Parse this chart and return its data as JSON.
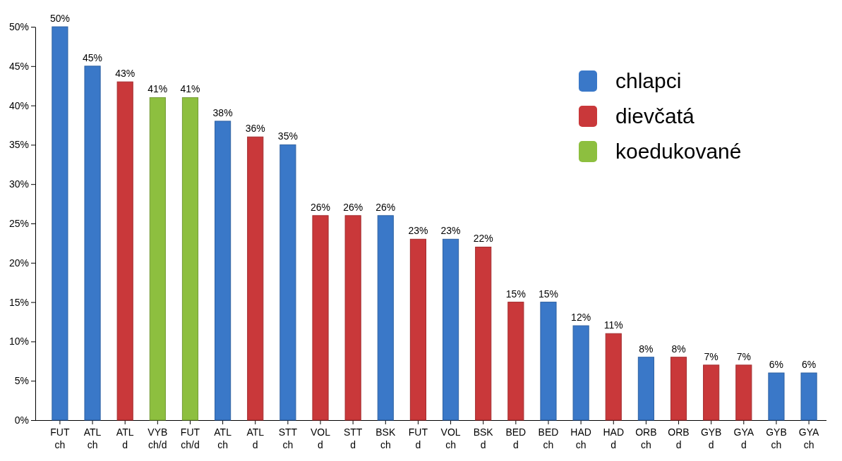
{
  "chart_data": {
    "type": "bar",
    "stacked": true,
    "legend": "top right",
    "categories": [
      "FUT ch",
      "ATL ch",
      "ATL d",
      "VYB ch/d",
      "FUT ch/d",
      "ATL ch",
      "ATL d",
      "STT ch",
      "VOL d",
      "STT d",
      "BSK ch",
      "FUT d",
      "VOL ch",
      "BSK d",
      "BED d",
      "BED ch",
      "HAD ch",
      "HAD d",
      "ORB ch",
      "ORB d",
      "GYB d",
      "GYA d",
      "GYB ch",
      "GYA ch"
    ],
    "series": [
      {
        "name": "chlapci",
        "color": "#3a78c8",
        "values": [
          50,
          45,
          null,
          null,
          null,
          38,
          null,
          35,
          null,
          null,
          26,
          null,
          23,
          null,
          null,
          15,
          12,
          null,
          8,
          null,
          null,
          null,
          6,
          6
        ],
        "value_labels": [
          "50%",
          "45%",
          null,
          null,
          null,
          "38%",
          null,
          "35%",
          null,
          null,
          "26%",
          null,
          "23%",
          null,
          null,
          "15%",
          "12%",
          null,
          "8%",
          null,
          null,
          null,
          "6%",
          "6%"
        ]
      },
      {
        "name": "dievčatá",
        "color": "#c9383a",
        "values": [
          null,
          null,
          43,
          null,
          null,
          null,
          36,
          null,
          26,
          26,
          null,
          23,
          null,
          22,
          15,
          null,
          null,
          11,
          null,
          8,
          7,
          7,
          null,
          null
        ],
        "value_labels": [
          null,
          null,
          "43%",
          null,
          null,
          null,
          "36%",
          null,
          "26%",
          "26%",
          null,
          "23%",
          null,
          "22%",
          "15%",
          null,
          null,
          "11%",
          null,
          "8%",
          "7%",
          "7%",
          null,
          null
        ]
      },
      {
        "name": "koedukované",
        "color": "#8dbf3f",
        "values": [
          null,
          null,
          null,
          41,
          41,
          null,
          null,
          null,
          null,
          null,
          null,
          null,
          null,
          null,
          null,
          null,
          null,
          null,
          null,
          null,
          null,
          null,
          null,
          null
        ],
        "value_labels": [
          null,
          null,
          null,
          "41%",
          "41%",
          null,
          null,
          null,
          null,
          null,
          null,
          null,
          null,
          null,
          null,
          null,
          null,
          null,
          null,
          null,
          null,
          null,
          null,
          null
        ]
      }
    ],
    "ylim": [
      0,
      50
    ],
    "yticks": [
      {
        "value": 0,
        "label": "0%"
      },
      {
        "value": 5,
        "label": "5%"
      },
      {
        "value": 10,
        "label": "10%"
      },
      {
        "value": 15,
        "label": "15%"
      },
      {
        "value": 20,
        "label": "20%"
      },
      {
        "value": 25,
        "label": "25%"
      },
      {
        "value": 30,
        "label": "30%"
      },
      {
        "value": 35,
        "label": "35%"
      },
      {
        "value": 40,
        "label": "40%"
      },
      {
        "value": 45,
        "label": "45%"
      },
      {
        "value": 50,
        "label": "50%"
      }
    ]
  }
}
